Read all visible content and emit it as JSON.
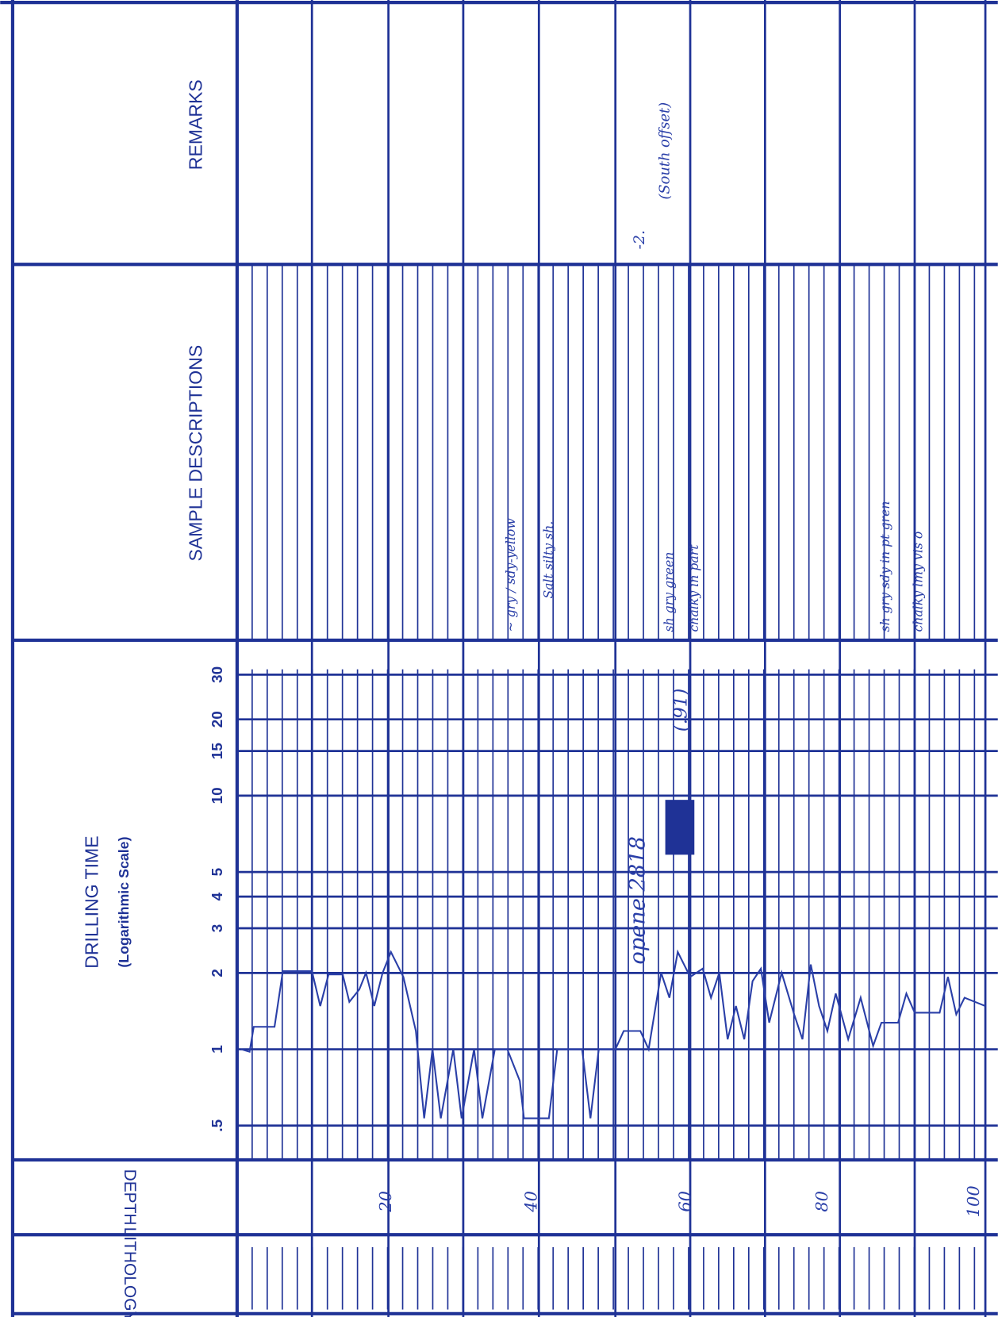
{
  "remarks": {
    "header": "REMARKS",
    "notes": [
      "-2.",
      "(South offset)"
    ]
  },
  "sample_descriptions": {
    "header": "SAMPLE DESCRIPTIONS",
    "notes": [
      "~ gry / sdy-yellow",
      "Salt silty sh.",
      "sh gry green",
      "chalky in part",
      "sh gry sdy in pt gren",
      "chalky lmy vis o"
    ]
  },
  "drilling_time": {
    "header": "DRILLING TIME",
    "subheader": "(Logarithmic Scale)",
    "scale_ticks": [
      {
        "value": 0.5,
        "label": ".5"
      },
      1,
      2,
      3,
      4,
      5,
      10,
      15,
      20,
      30
    ],
    "notes": [
      "opene 2818",
      "(.91)"
    ]
  },
  "depth": {
    "header": "DEPTH",
    "labels": [
      "20",
      "40",
      "60",
      "80",
      "100"
    ]
  },
  "lithology": {
    "header": "LITHOLOGY"
  }
}
